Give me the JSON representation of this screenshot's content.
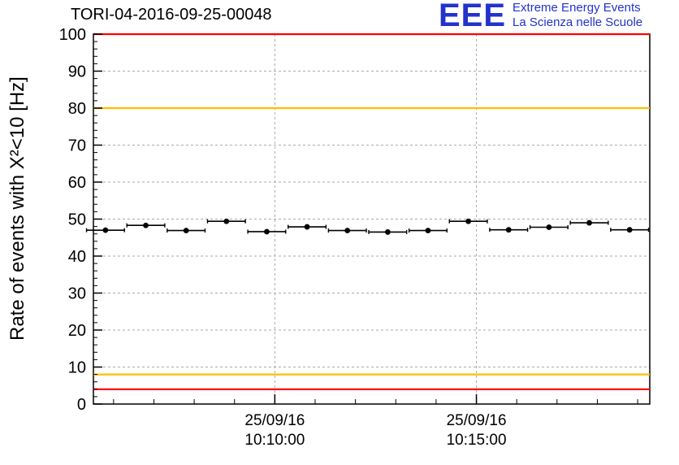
{
  "logo": {
    "text": "EEE",
    "tagline1": "Extreme Energy Events",
    "tagline2": "La Scienza nelle Scuole",
    "color": "#2233cc"
  },
  "chart_data": {
    "type": "scatter",
    "title": "TORI-04-2016-09-25-00048",
    "ylabel": "Rate of events with X²<10 [Hz]",
    "xlabel": "",
    "x_unit": "minutes after 10:00 on 25/09/16",
    "xlim": [
      5.5,
      19.3
    ],
    "ylim": [
      0,
      100
    ],
    "y_major_ticks": [
      0,
      10,
      20,
      30,
      40,
      50,
      60,
      70,
      80,
      90,
      100
    ],
    "y_minor_step": 2,
    "x_minor_step": 1,
    "x_major_ticks": [
      {
        "x": 10,
        "line1": "25/09/16",
        "line2": "10:10:00"
      },
      {
        "x": 15,
        "line1": "25/09/16",
        "line2": "10:15:00"
      }
    ],
    "grid": true,
    "grid_color": "#aaaaaa",
    "reference_lines": [
      {
        "y": 100,
        "color": "#ff0000",
        "name": "alarm-high"
      },
      {
        "y": 80,
        "color": "#ffbf00",
        "name": "warn-high"
      },
      {
        "y": 8,
        "color": "#ffbf00",
        "name": "warn-low"
      },
      {
        "y": 4,
        "color": "#ff0000",
        "name": "alarm-low"
      }
    ],
    "series": [
      {
        "name": "event-rate",
        "marker": "circle",
        "color": "#000000",
        "x": [
          5.8,
          6.8,
          7.8,
          8.8,
          9.8,
          10.8,
          11.8,
          12.8,
          13.8,
          14.8,
          15.8,
          16.8,
          17.8,
          18.8
        ],
        "y": [
          47.0,
          48.3,
          46.9,
          49.4,
          46.6,
          47.9,
          46.9,
          46.5,
          46.9,
          49.4,
          47.1,
          47.8,
          49.0,
          47.1
        ],
        "xerr": 0.47,
        "yerr": 0.7
      }
    ]
  }
}
